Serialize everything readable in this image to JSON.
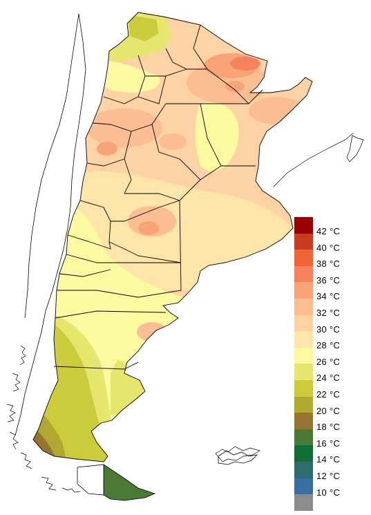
{
  "legend": {
    "entries": [
      {
        "label": "42 °C",
        "color": "#9b0000"
      },
      {
        "label": "40 °C",
        "color": "#c83c1e"
      },
      {
        "label": "38 °C",
        "color": "#f06436"
      },
      {
        "label": "36 °C",
        "color": "#f5825a"
      },
      {
        "label": "34 °C",
        "color": "#f8a478"
      },
      {
        "label": "32 °C",
        "color": "#fbbe92"
      },
      {
        "label": "30 °C",
        "color": "#fdd3a6"
      },
      {
        "label": "28 °C",
        "color": "#fde4a8"
      },
      {
        "label": "26 °C",
        "color": "#fbfaa0"
      },
      {
        "label": "24 °C",
        "color": "#e6e66e"
      },
      {
        "label": "22 °C",
        "color": "#cbcb3c"
      },
      {
        "label": "20 °C",
        "color": "#b0a830"
      },
      {
        "label": "18 °C",
        "color": "#957630"
      },
      {
        "label": "16 °C",
        "color": "#4a7a34"
      },
      {
        "label": "14 °C",
        "color": "#0e6e34"
      },
      {
        "label": "12 °C",
        "color": "#2e6a6e"
      },
      {
        "label": "10 °C",
        "color": "#3a6ea2"
      },
      {
        "label": "",
        "color": "#8c8c8c"
      }
    ]
  }
}
